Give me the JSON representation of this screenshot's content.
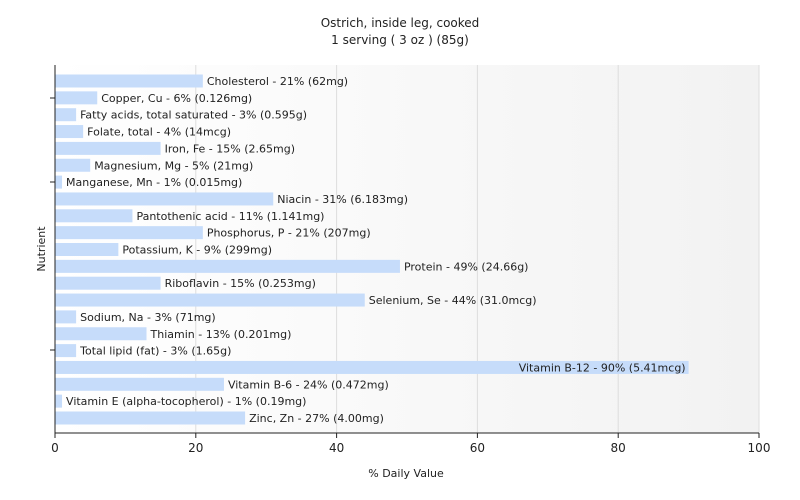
{
  "chart_data": {
    "type": "bar",
    "orientation": "horizontal",
    "title": "Ostrich, inside leg, cooked",
    "subtitle": "1 serving ( 3 oz ) (85g)",
    "xlabel": "% Daily Value",
    "ylabel": "Nutrient",
    "xlim": [
      0,
      100
    ],
    "xticks": [
      "0",
      "20",
      "40",
      "60",
      "80",
      "100"
    ],
    "grid": true,
    "bar_color": "#c6dcfa",
    "categories": [
      "Cholesterol",
      "Copper, Cu",
      "Fatty acids, total saturated",
      "Folate, total",
      "Iron, Fe",
      "Magnesium, Mg",
      "Manganese, Mn",
      "Niacin",
      "Pantothenic acid",
      "Phosphorus, P",
      "Potassium, K",
      "Protein",
      "Riboflavin",
      "Selenium, Se",
      "Sodium, Na",
      "Thiamin",
      "Total lipid (fat)",
      "Vitamin B-12",
      "Vitamin B-6",
      "Vitamin E (alpha-tocopherol)",
      "Zinc, Zn"
    ],
    "values": [
      21,
      6,
      3,
      4,
      15,
      5,
      1,
      31,
      11,
      21,
      9,
      49,
      15,
      44,
      3,
      13,
      3,
      90,
      24,
      1,
      27
    ],
    "labels": [
      "Cholesterol - 21% (62mg)",
      "Copper, Cu - 6% (0.126mg)",
      "Fatty acids, total saturated - 3% (0.595g)",
      "Folate, total - 4% (14mcg)",
      "Iron, Fe - 15% (2.65mg)",
      "Magnesium, Mg - 5% (21mg)",
      "Manganese, Mn - 1% (0.015mg)",
      "Niacin - 31% (6.183mg)",
      "Pantothenic acid - 11% (1.141mg)",
      "Phosphorus, P - 21% (207mg)",
      "Potassium, K - 9% (299mg)",
      "Protein - 49% (24.66g)",
      "Riboflavin - 15% (0.253mg)",
      "Selenium, Se - 44% (31.0mcg)",
      "Sodium, Na - 3% (71mg)",
      "Thiamin - 13% (0.201mg)",
      "Total lipid (fat) - 3% (1.65g)",
      "Vitamin B-12 - 90% (5.41mcg)",
      "Vitamin B-6 - 24% (0.472mg)",
      "Vitamin E (alpha-tocopherol) - 1% (0.19mg)",
      "Zinc, Zn - 27% (4.00mg)"
    ]
  }
}
